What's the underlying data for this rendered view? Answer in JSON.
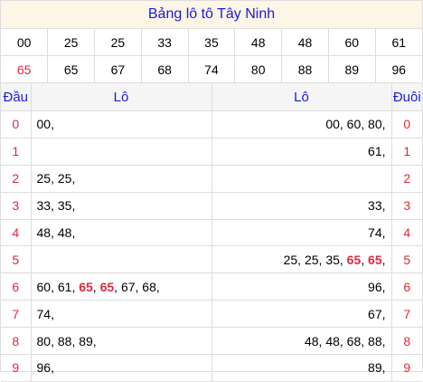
{
  "title": "Bảng lô tô Tây Ninh",
  "numbers_row1": [
    "00",
    "25",
    "25",
    "33",
    "35",
    "48",
    "48",
    "60",
    "61"
  ],
  "numbers_row2": [
    "65",
    "65",
    "67",
    "68",
    "74",
    "80",
    "88",
    "89",
    "96"
  ],
  "highlight": "65",
  "headers": {
    "dau": "Đầu",
    "lo_left": "Lô",
    "lo_right": "Lô",
    "duoi": "Đuôi"
  },
  "rows": [
    {
      "digit": "0",
      "left": [
        "00"
      ],
      "right": [
        "00",
        "60",
        "80"
      ]
    },
    {
      "digit": "1",
      "left": [],
      "right": [
        "61"
      ]
    },
    {
      "digit": "2",
      "left": [
        "25",
        "25"
      ],
      "right": []
    },
    {
      "digit": "3",
      "left": [
        "33",
        "35"
      ],
      "right": [
        "33"
      ]
    },
    {
      "digit": "4",
      "left": [
        "48",
        "48"
      ],
      "right": [
        "74"
      ]
    },
    {
      "digit": "5",
      "left": [],
      "right": [
        "25",
        "25",
        "35",
        "65",
        "65"
      ]
    },
    {
      "digit": "6",
      "left": [
        "60",
        "61",
        "65",
        "65",
        "67",
        "68"
      ],
      "right": [
        "96"
      ]
    },
    {
      "digit": "7",
      "left": [
        "74"
      ],
      "right": [
        "67"
      ]
    },
    {
      "digit": "8",
      "left": [
        "80",
        "88",
        "89"
      ],
      "right": [
        "48",
        "48",
        "68",
        "88"
      ]
    },
    {
      "digit": "9",
      "left": [
        "96"
      ],
      "right": [
        "89"
      ]
    }
  ],
  "colors": {
    "title_bg": "#fdf5e6",
    "blue": "#1a1ae0",
    "red": "#e0283a",
    "header_bg": "#f5f5f5"
  }
}
